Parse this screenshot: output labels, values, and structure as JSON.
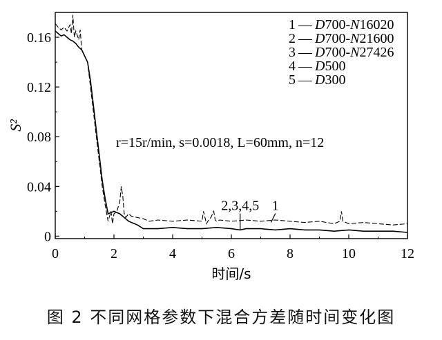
{
  "caption": "图 2 不同网格参数下混合方差随时间变化图",
  "chart_data": {
    "type": "line",
    "title": "",
    "xlabel": "时间/s",
    "ylabel": "S²",
    "xlim": [
      0,
      12
    ],
    "ylim": [
      -0.002,
      0.18
    ],
    "x_ticks": [
      0,
      2,
      4,
      6,
      8,
      10,
      12
    ],
    "y_ticks": [
      0,
      0.04,
      0.08,
      0.12,
      0.16
    ],
    "x_tick_labels": [
      "0",
      "2",
      "4",
      "6",
      "8",
      "10",
      "12"
    ],
    "y_tick_labels": [
      "0",
      "0.04",
      "0.08",
      "0.12",
      "0.16"
    ],
    "grid": false,
    "legend_position": "top-right",
    "legend": [
      {
        "num": "1",
        "dash": "—",
        "prefix": "D",
        "main": "700-",
        "italic": "N",
        "suffix": "16020"
      },
      {
        "num": "2",
        "dash": "—",
        "prefix": "D",
        "main": "700-",
        "italic": "N",
        "suffix": "21600"
      },
      {
        "num": "3",
        "dash": "—",
        "prefix": "D",
        "main": "700-",
        "italic": "N",
        "suffix": "27426"
      },
      {
        "num": "4",
        "dash": "—",
        "prefix": "D",
        "main": "500",
        "italic": "",
        "suffix": ""
      },
      {
        "num": "5",
        "dash": "—",
        "prefix": "D",
        "main": "300",
        "italic": "",
        "suffix": ""
      }
    ],
    "annotation": "r=15r/min, s=0.0018, L=60mm, n=12",
    "curve_labels": [
      {
        "text": "2,3,4,5",
        "x": 6.3,
        "y": 0.021,
        "arrow_to": [
          6.3,
          0.005
        ]
      },
      {
        "text": "1",
        "x": 7.5,
        "y": 0.021,
        "arrow_to": [
          7.35,
          0.011
        ]
      }
    ],
    "series": [
      {
        "name": "1",
        "style": "dashed",
        "x": [
          0,
          0.1,
          0.2,
          0.3,
          0.4,
          0.5,
          0.55,
          0.6,
          0.65,
          0.7,
          0.8,
          0.85,
          0.9,
          1.0,
          1.1,
          1.2,
          1.3,
          1.4,
          1.5,
          1.6,
          1.7,
          1.8,
          1.9,
          1.95,
          2.0,
          2.1,
          2.2,
          2.25,
          2.3,
          2.35,
          2.4,
          2.5,
          2.6,
          2.8,
          3.0,
          3.2,
          3.5,
          4.0,
          4.5,
          5.0,
          5.05,
          5.1,
          5.15,
          5.2,
          5.3,
          5.4,
          5.45,
          5.5,
          5.6,
          6.0,
          6.5,
          7.0,
          7.5,
          8.0,
          8.5,
          9.0,
          9.5,
          9.7,
          9.75,
          9.8,
          9.9,
          10.0,
          10.5,
          11.0,
          11.5,
          12.0
        ],
        "y": [
          0.171,
          0.168,
          0.166,
          0.168,
          0.165,
          0.17,
          0.163,
          0.178,
          0.16,
          0.165,
          0.158,
          0.166,
          0.15,
          0.145,
          0.14,
          0.12,
          0.1,
          0.08,
          0.06,
          0.04,
          0.025,
          0.012,
          0.02,
          0.01,
          0.018,
          0.02,
          0.028,
          0.04,
          0.032,
          0.018,
          0.015,
          0.018,
          0.016,
          0.015,
          0.014,
          0.012,
          0.013,
          0.012,
          0.013,
          0.012,
          0.02,
          0.015,
          0.01,
          0.012,
          0.015,
          0.02,
          0.013,
          0.012,
          0.013,
          0.012,
          0.013,
          0.012,
          0.013,
          0.012,
          0.011,
          0.012,
          0.01,
          0.012,
          0.02,
          0.012,
          0.011,
          0.01,
          0.011,
          0.01,
          0.009,
          0.01
        ]
      },
      {
        "name": "2,3,4,5",
        "style": "solid",
        "x": [
          0,
          0.1,
          0.2,
          0.3,
          0.4,
          0.5,
          0.6,
          0.7,
          0.8,
          0.9,
          1.0,
          1.1,
          1.2,
          1.3,
          1.4,
          1.5,
          1.6,
          1.7,
          1.8,
          1.9,
          2.0,
          2.1,
          2.2,
          2.3,
          2.4,
          2.5,
          2.6,
          2.8,
          3.0,
          3.2,
          3.5,
          4.0,
          4.5,
          5.0,
          5.5,
          6.0,
          6.3,
          6.5,
          7.0,
          7.5,
          8.0,
          8.5,
          9.0,
          9.5,
          10.0,
          10.5,
          11.0,
          11.5,
          12.0
        ],
        "y": [
          0.165,
          0.163,
          0.161,
          0.162,
          0.16,
          0.158,
          0.157,
          0.155,
          0.152,
          0.15,
          0.145,
          0.14,
          0.125,
          0.105,
          0.085,
          0.065,
          0.045,
          0.03,
          0.018,
          0.019,
          0.02,
          0.019,
          0.018,
          0.016,
          0.014,
          0.012,
          0.011,
          0.009,
          0.006,
          0.006,
          0.006,
          0.007,
          0.006,
          0.006,
          0.007,
          0.006,
          0.005,
          0.006,
          0.006,
          0.005,
          0.006,
          0.005,
          0.005,
          0.004,
          0.005,
          0.004,
          0.004,
          0.004,
          0.003
        ]
      }
    ]
  }
}
